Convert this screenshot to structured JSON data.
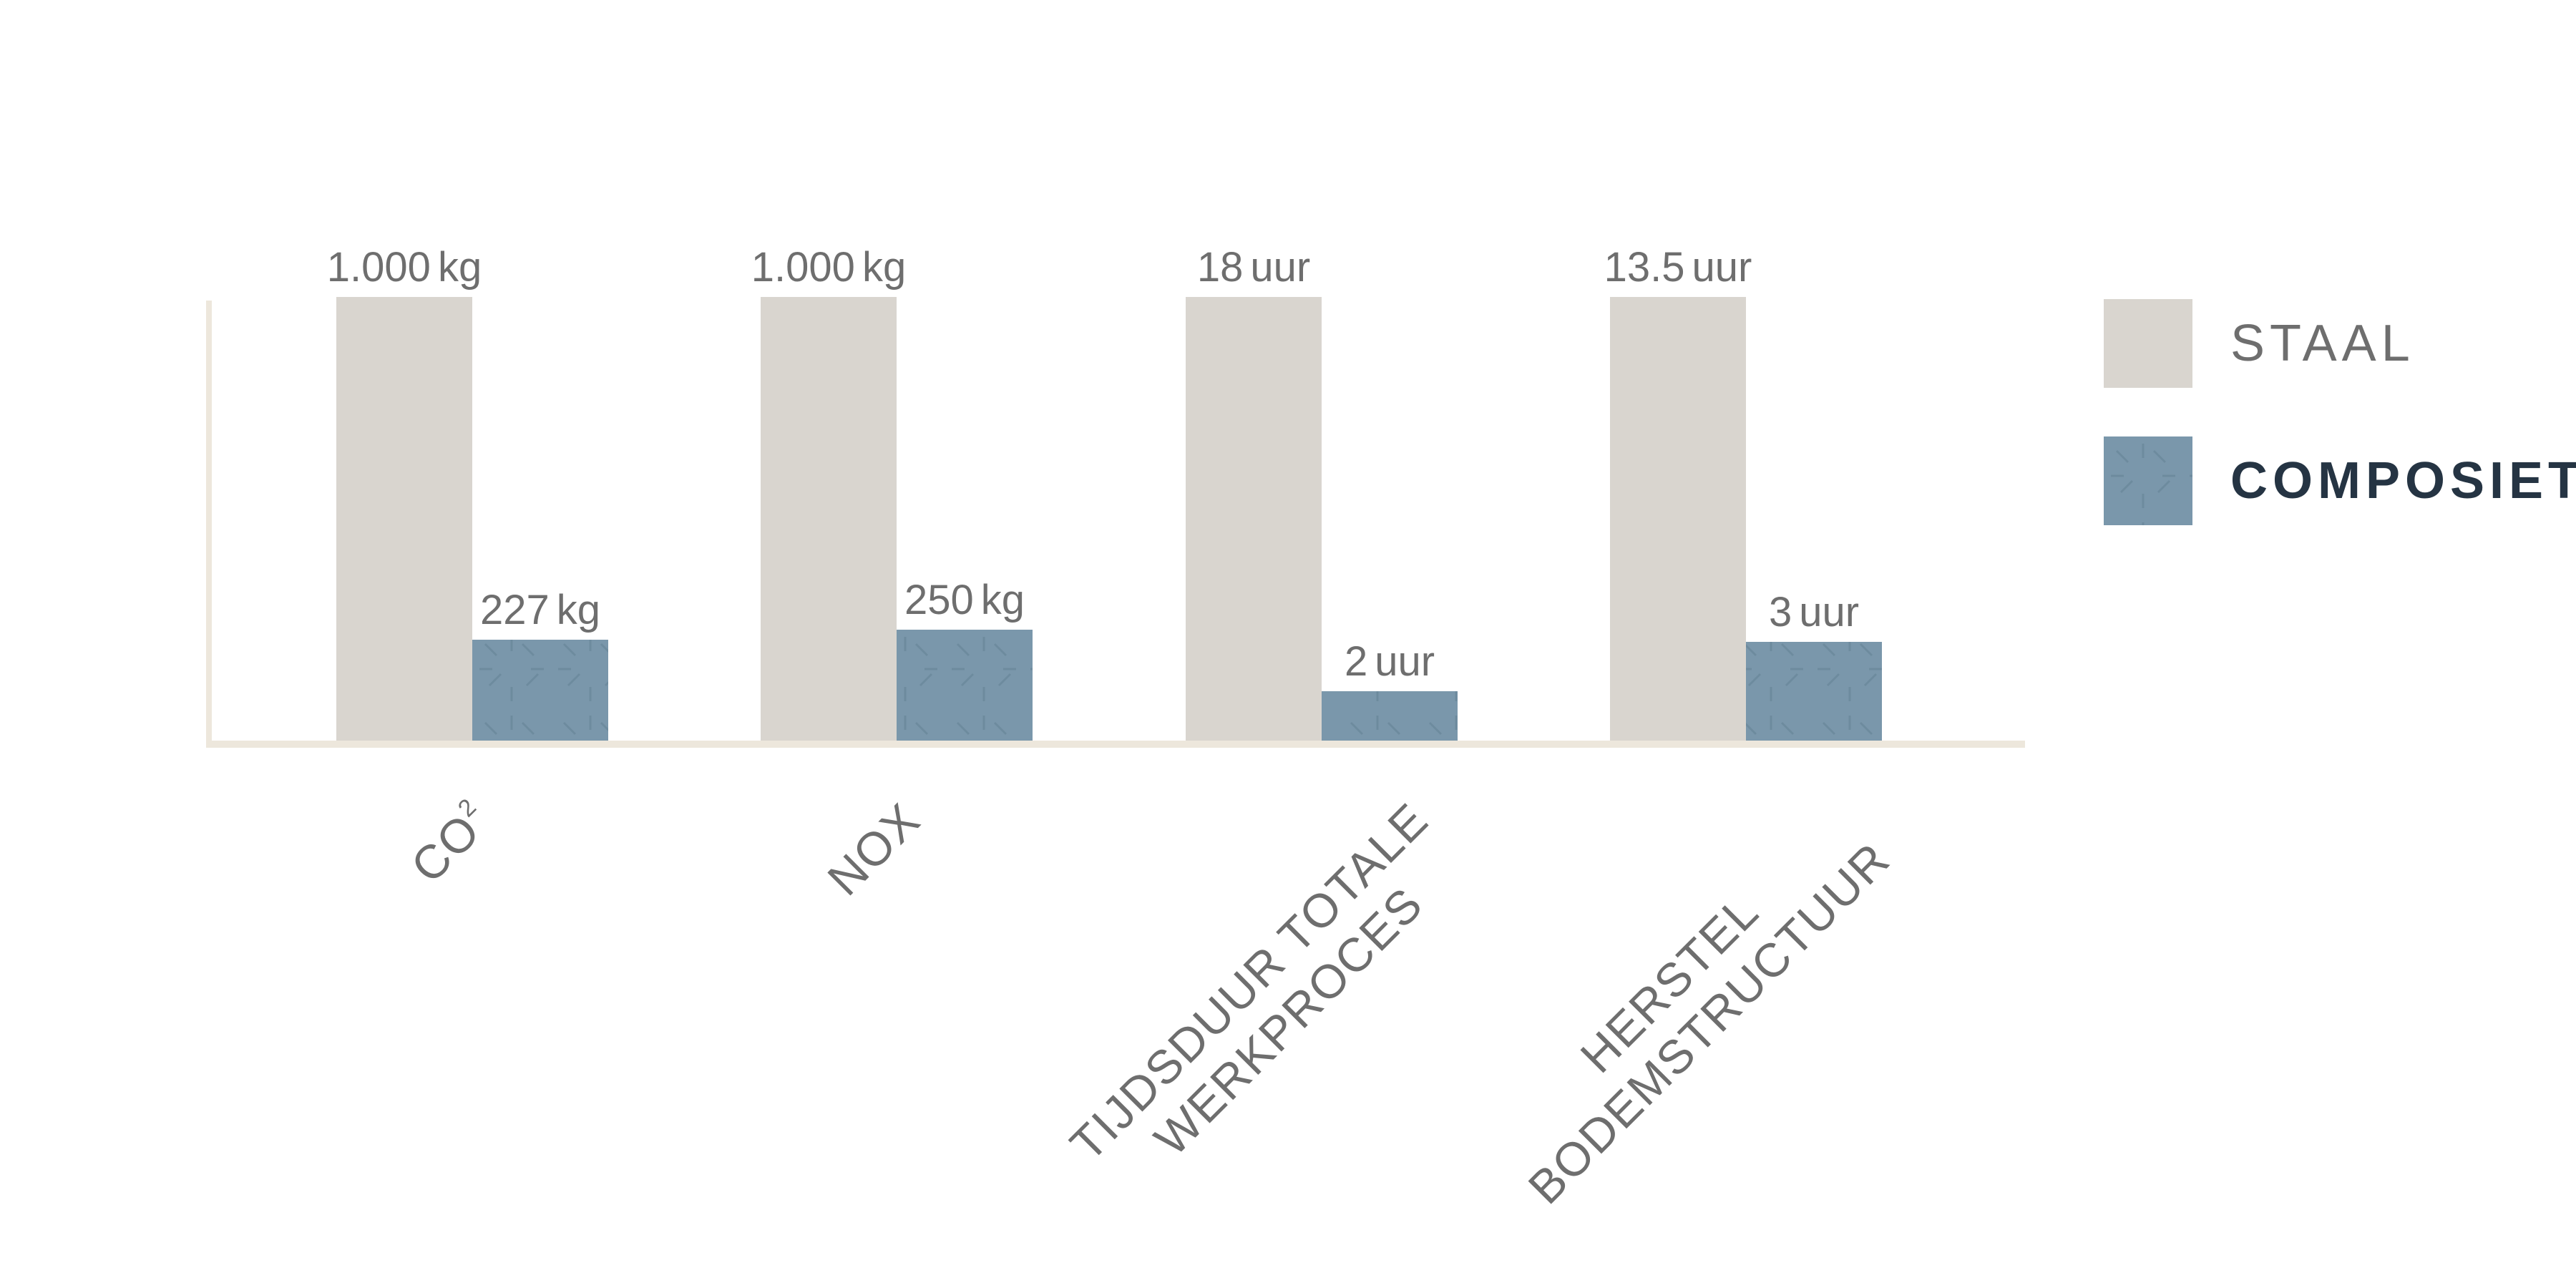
{
  "colors": {
    "staal": "#d9d5cf",
    "composiet": "#7a97ab",
    "composiet_pattern": "#6a889b",
    "axis": "#ede7dc",
    "label_text": "#6e6e6e",
    "legend_dark_text": "#253443"
  },
  "chart_data": {
    "type": "bar",
    "title": "",
    "xlabel": "",
    "ylabel": "",
    "categories": [
      [
        "CO",
        "2"
      ],
      [
        "NOX"
      ],
      [
        "TIJDSDUUR TOTALE",
        "WERKPROCES"
      ],
      [
        "HERSTEL",
        "BODEMSTRUCTUUR"
      ]
    ],
    "relative_scale_note": "",
    "series": [
      {
        "name": "STAAL",
        "values": [
          1000,
          1000,
          18,
          13.5
        ],
        "relative": [
          1.0,
          1.0,
          1.0,
          1.0
        ],
        "labels": [
          "1.000 kg",
          "1.000 kg",
          "18 uur",
          "13.5 uur"
        ]
      },
      {
        "name": "COMPOSIET",
        "values": [
          227,
          250,
          2,
          3
        ],
        "relative": [
          0.227,
          0.25,
          0.111,
          0.222
        ],
        "labels": [
          "227 kg",
          "250 kg",
          "2 uur",
          "3 uur"
        ]
      }
    ],
    "legend_position": "right",
    "grid": false
  }
}
